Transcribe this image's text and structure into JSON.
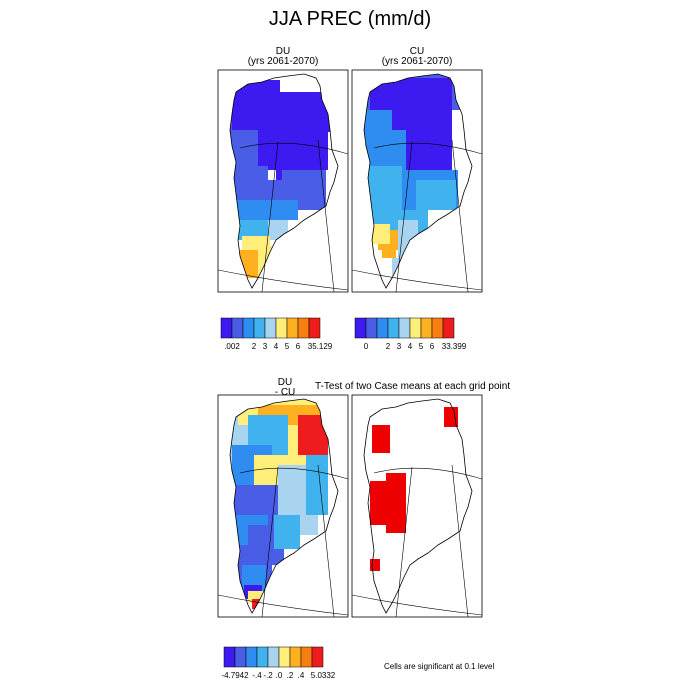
{
  "figure_title": "JJA PREC (mm/d)",
  "ttest_title": "T-Test of two Case means at each grid point",
  "significance_note": "Cells are significant at 0.1 level",
  "colors": {
    "precip": [
      "#3c1af0",
      "#4a5de6",
      "#2f8cf0",
      "#40b3ee",
      "#a8d4f0",
      "#ffee7a",
      "#ffb020",
      "#f77f10",
      "#ee1c1c",
      "#d42a2a"
    ],
    "diff": [
      "#3c1af0",
      "#4a5de6",
      "#2f8cf0",
      "#40b3ee",
      "#a8d4f0",
      "#ffee7a",
      "#ffb020",
      "#f77f10",
      "#ee1c1c",
      "#d42a2a"
    ],
    "significant": "#ee0000"
  },
  "chart_data": [
    {
      "type": "heatmap",
      "panel": "top-left",
      "title": "DU",
      "subtitle": "(yrs 2061-2070)",
      "colorbar_tick_labels": [
        ".002",
        "",
        "2",
        "3",
        "4",
        "5",
        "6",
        "",
        "35.129"
      ]
    },
    {
      "type": "heatmap",
      "panel": "top-right",
      "title": "CU",
      "subtitle": "(yrs 2061-2070)",
      "colorbar_tick_labels": [
        "0",
        "",
        "2",
        "3",
        "4",
        "5",
        "6",
        "",
        "33.399"
      ]
    },
    {
      "type": "heatmap",
      "panel": "bottom-left",
      "title": "DU",
      "subtitle": "- CU",
      "colorbar_tick_labels": [
        "-4.7942",
        "",
        "-.4",
        "-.2",
        ".0",
        ".2",
        ".4",
        "",
        "5.0332"
      ]
    },
    {
      "type": "heatmap",
      "panel": "bottom-right",
      "title": "",
      "legend": "significance mask"
    }
  ]
}
